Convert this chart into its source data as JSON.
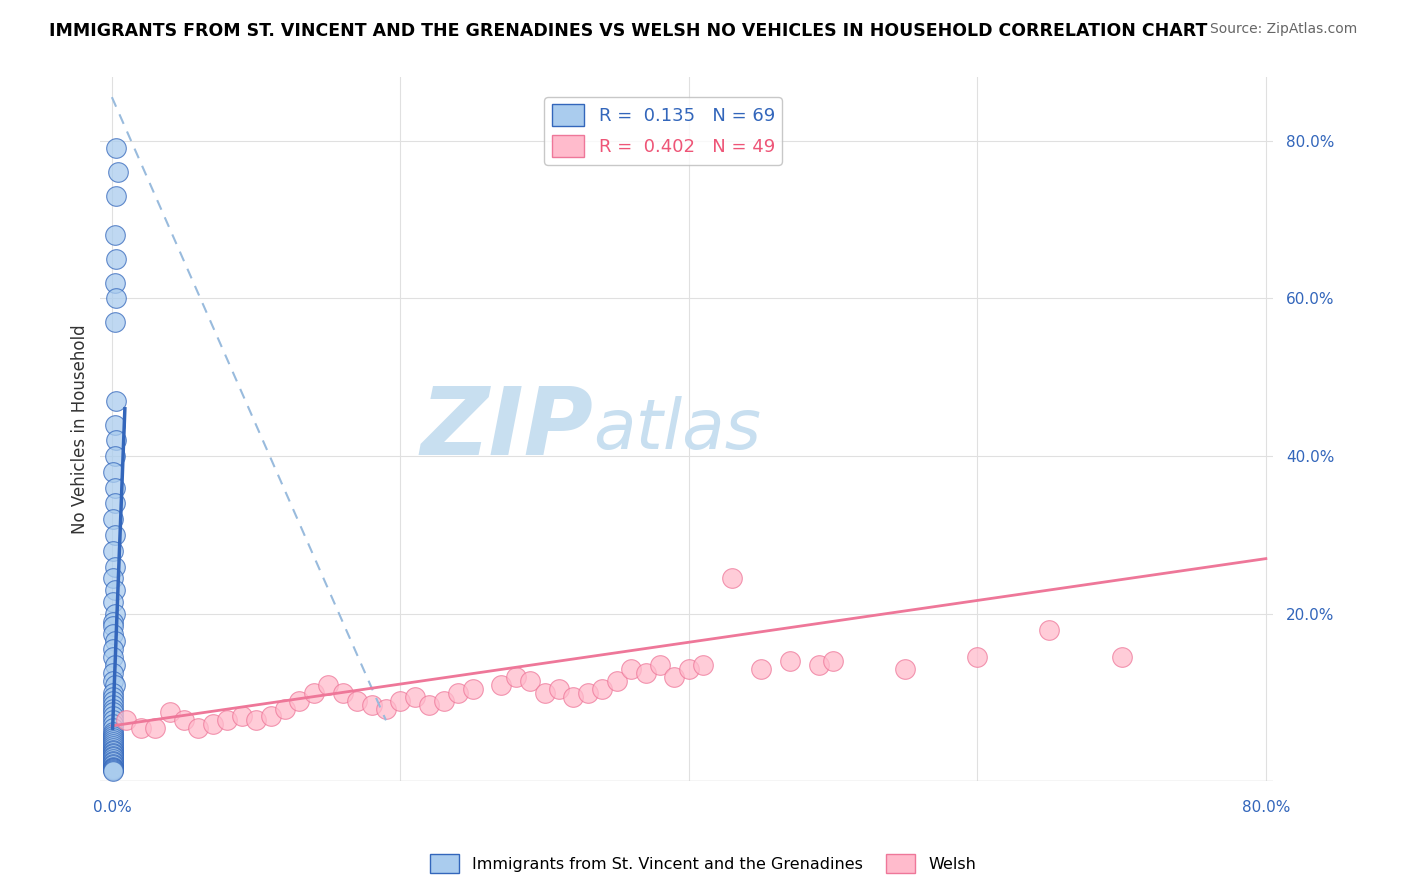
{
  "title": "IMMIGRANTS FROM ST. VINCENT AND THE GRENADINES VS WELSH NO VEHICLES IN HOUSEHOLD CORRELATION CHART",
  "source": "Source: ZipAtlas.com",
  "ylabel": "No Vehicles in Household",
  "legend_entries": [
    {
      "label": "Immigrants from St. Vincent and the Grenadines",
      "R": 0.135,
      "N": 69
    },
    {
      "label": "Welsh",
      "R": 0.402,
      "N": 49
    }
  ],
  "yticks_right": [
    "20.0%",
    "40.0%",
    "60.0%",
    "80.0%"
  ],
  "yticks_right_vals": [
    0.2,
    0.4,
    0.6,
    0.8
  ],
  "xmax": 0.8,
  "ymax": 0.88,
  "blue_scatter_x": [
    0.003,
    0.004,
    0.003,
    0.002,
    0.003,
    0.002,
    0.003,
    0.002,
    0.003,
    0.002,
    0.003,
    0.002,
    0.001,
    0.002,
    0.002,
    0.001,
    0.002,
    0.001,
    0.002,
    0.001,
    0.002,
    0.001,
    0.002,
    0.001,
    0.001,
    0.001,
    0.002,
    0.001,
    0.001,
    0.002,
    0.001,
    0.001,
    0.002,
    0.001,
    0.001,
    0.001,
    0.001,
    0.001,
    0.001,
    0.001,
    0.001,
    0.001,
    0.001,
    0.001,
    0.001,
    0.001,
    0.001,
    0.001,
    0.001,
    0.001,
    0.001,
    0.001,
    0.001,
    0.001,
    0.001,
    0.001,
    0.001,
    0.001,
    0.001,
    0.001,
    0.001,
    0.001,
    0.001,
    0.001,
    0.001,
    0.001,
    0.001,
    0.001,
    0.001
  ],
  "blue_scatter_y": [
    0.79,
    0.76,
    0.73,
    0.68,
    0.65,
    0.62,
    0.6,
    0.57,
    0.47,
    0.44,
    0.42,
    0.4,
    0.38,
    0.36,
    0.34,
    0.32,
    0.3,
    0.28,
    0.26,
    0.245,
    0.23,
    0.215,
    0.2,
    0.19,
    0.185,
    0.175,
    0.165,
    0.155,
    0.145,
    0.135,
    0.125,
    0.115,
    0.11,
    0.1,
    0.095,
    0.09,
    0.085,
    0.08,
    0.075,
    0.07,
    0.065,
    0.06,
    0.055,
    0.05,
    0.048,
    0.045,
    0.042,
    0.04,
    0.038,
    0.035,
    0.033,
    0.03,
    0.028,
    0.026,
    0.024,
    0.022,
    0.02,
    0.018,
    0.016,
    0.014,
    0.012,
    0.01,
    0.008,
    0.006,
    0.005,
    0.004,
    0.003,
    0.002,
    0.001
  ],
  "pink_scatter_x": [
    0.01,
    0.02,
    0.03,
    0.04,
    0.05,
    0.06,
    0.07,
    0.08,
    0.09,
    0.1,
    0.11,
    0.12,
    0.13,
    0.14,
    0.15,
    0.16,
    0.17,
    0.18,
    0.19,
    0.2,
    0.21,
    0.22,
    0.23,
    0.24,
    0.25,
    0.27,
    0.28,
    0.29,
    0.3,
    0.31,
    0.32,
    0.33,
    0.34,
    0.35,
    0.36,
    0.37,
    0.38,
    0.39,
    0.4,
    0.41,
    0.43,
    0.45,
    0.47,
    0.49,
    0.5,
    0.55,
    0.6,
    0.65,
    0.7
  ],
  "pink_scatter_y": [
    0.065,
    0.055,
    0.055,
    0.075,
    0.065,
    0.055,
    0.06,
    0.065,
    0.07,
    0.065,
    0.07,
    0.08,
    0.09,
    0.1,
    0.11,
    0.1,
    0.09,
    0.085,
    0.08,
    0.09,
    0.095,
    0.085,
    0.09,
    0.1,
    0.105,
    0.11,
    0.12,
    0.115,
    0.1,
    0.105,
    0.095,
    0.1,
    0.105,
    0.115,
    0.13,
    0.125,
    0.135,
    0.12,
    0.13,
    0.135,
    0.245,
    0.13,
    0.14,
    0.135,
    0.14,
    0.13,
    0.145,
    0.18,
    0.145
  ],
  "blue_line_color": "#3366bb",
  "blue_dashed_color": "#99bbdd",
  "pink_line_color": "#ee7799",
  "scatter_blue_color": "#aaccee",
  "scatter_pink_color": "#ffbbcc",
  "grid_color": "#e0e0e0",
  "watermark_zip": "ZIP",
  "watermark_atlas": "atlas",
  "watermark_color": "#c8dff0"
}
